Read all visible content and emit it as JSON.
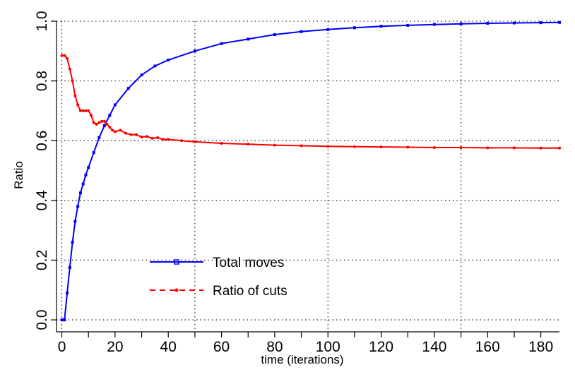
{
  "chart_data": {
    "type": "line",
    "xlabel": "time (iterations)",
    "ylabel": "Ratio",
    "xlim": [
      -2,
      187
    ],
    "ylim": [
      -0.04,
      1.0
    ],
    "grid": true,
    "grid_style": "dotted",
    "legend_position": "lower-left-center",
    "x_ticks": [
      0,
      10,
      20,
      30,
      40,
      50,
      60,
      70,
      80,
      90,
      100,
      110,
      120,
      130,
      140,
      150,
      160,
      170,
      180
    ],
    "x_tick_labels": [
      "0",
      "20",
      "40",
      "60",
      "80",
      "100",
      "120",
      "140",
      "160",
      "180"
    ],
    "x_tick_label_values": [
      0,
      20,
      40,
      60,
      80,
      100,
      120,
      140,
      160,
      180
    ],
    "y_ticks": [
      0.0,
      0.2,
      0.4,
      0.6,
      0.8,
      1.0
    ],
    "y_tick_labels": [
      "0.0",
      "0.2",
      "0.4",
      "0.6",
      "0.8",
      "1.0"
    ],
    "x_grid": [
      0,
      50,
      100,
      150
    ],
    "y_grid": [
      0.0,
      0.2,
      0.4,
      0.6,
      0.8,
      1.0
    ],
    "series": [
      {
        "name": "Total moves",
        "color": "#0000ff",
        "marker": "square",
        "line_style": "solid",
        "x": [
          0,
          1,
          2,
          3,
          4,
          5,
          6,
          7,
          8,
          9,
          10,
          12,
          14,
          16,
          18,
          20,
          25,
          30,
          35,
          40,
          50,
          60,
          70,
          80,
          90,
          100,
          110,
          120,
          130,
          140,
          150,
          160,
          170,
          180,
          187
        ],
        "y": [
          0.0,
          0.0,
          0.09,
          0.175,
          0.26,
          0.33,
          0.38,
          0.425,
          0.455,
          0.485,
          0.51,
          0.56,
          0.61,
          0.65,
          0.685,
          0.72,
          0.775,
          0.82,
          0.85,
          0.87,
          0.9,
          0.925,
          0.94,
          0.955,
          0.965,
          0.972,
          0.978,
          0.983,
          0.986,
          0.989,
          0.991,
          0.993,
          0.994,
          0.995,
          0.996
        ]
      },
      {
        "name": "Ratio of cuts",
        "color": "#ff0000",
        "marker": "circle",
        "line_style": "dashed",
        "x": [
          0,
          1,
          2,
          3,
          4,
          5,
          6,
          7,
          8,
          9,
          10,
          11,
          12,
          13,
          14,
          15,
          16,
          17,
          18,
          19,
          20,
          22,
          24,
          26,
          28,
          30,
          32,
          34,
          36,
          38,
          40,
          45,
          50,
          60,
          70,
          80,
          90,
          100,
          110,
          120,
          130,
          140,
          150,
          160,
          170,
          180,
          187
        ],
        "y": [
          0.885,
          0.885,
          0.875,
          0.84,
          0.8,
          0.75,
          0.72,
          0.7,
          0.7,
          0.7,
          0.7,
          0.685,
          0.66,
          0.655,
          0.66,
          0.665,
          0.665,
          0.655,
          0.645,
          0.635,
          0.63,
          0.635,
          0.625,
          0.62,
          0.62,
          0.612,
          0.614,
          0.608,
          0.61,
          0.604,
          0.604,
          0.6,
          0.596,
          0.591,
          0.588,
          0.585,
          0.583,
          0.581,
          0.58,
          0.579,
          0.578,
          0.577,
          0.577,
          0.576,
          0.576,
          0.575,
          0.575
        ]
      }
    ]
  }
}
